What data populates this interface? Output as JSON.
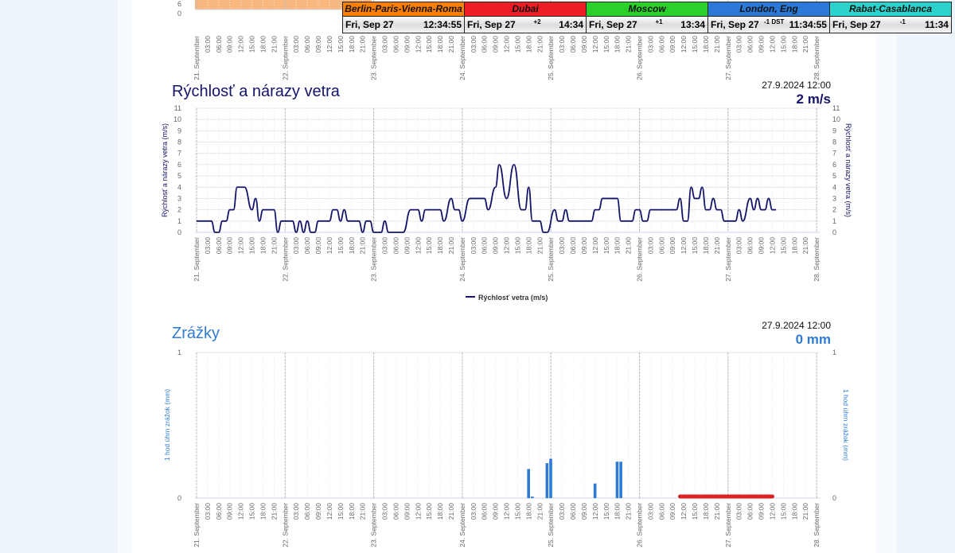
{
  "colors": {
    "wind_line": "#14146b",
    "wind_title": "#14146b",
    "precip": "#2f7bd4",
    "forecast": "#dd2222",
    "top_area": "#f9b880"
  },
  "top_chart": {
    "y_ticks": [
      "6",
      "0"
    ]
  },
  "days": [
    "21. September",
    "22. September",
    "23. September",
    "24. September",
    "25. September",
    "26. September",
    "27. September",
    "28. September"
  ],
  "hours": [
    "03:00",
    "06:00",
    "09:00",
    "12:00",
    "15:00",
    "18:00",
    "21:00"
  ],
  "clocks": [
    {
      "city": "Berlin-Paris-Vienna-Roma",
      "date": "Fri, Sep 27",
      "offset": "",
      "time": "12:34:55",
      "color": "#ff8000"
    },
    {
      "city": "Dubai",
      "date": "Fri, Sep 27",
      "offset": "+2",
      "time": "14:34",
      "color": "#ee1c24"
    },
    {
      "city": "Moscow",
      "date": "Fri, Sep 27",
      "offset": "+1",
      "time": "13:34",
      "color": "#2bd12b"
    },
    {
      "city": "London, Eng",
      "date": "Fri, Sep 27",
      "offset": "-1 DST",
      "time": "11:34:55",
      "color": "#2b78d6"
    },
    {
      "city": "Rabat-Casablanca",
      "date": "Fri, Sep 27",
      "offset": "-1",
      "time": "11:34",
      "color": "#2ad4cc"
    }
  ],
  "wind": {
    "title": "Rýchlosť a nárazy vetra",
    "stamp_date": "27.9.2024 12:00",
    "stamp_value": "2 m/s",
    "y_label": "Rýchlosť a nárazy vetra (m/s)",
    "legend": "Rýchlosť vetra (m/s)"
  },
  "precip": {
    "title": "Zrážky",
    "stamp_date": "27.9.2024 12:00",
    "stamp_value": "0 mm",
    "y_label": "1 hod úhrn zrážok (mm)"
  },
  "chart_data": [
    {
      "type": "line",
      "title": "Rýchlosť a nárazy vetra",
      "ylabel": "Rýchlosť a nárazy vetra (m/s)",
      "ylim": [
        0,
        11
      ],
      "x_unit": "hours since 21. September 00:00",
      "xlim": [
        0,
        168
      ],
      "series": [
        {
          "name": "Rýchlosť vetra (m/s)",
          "points": [
            [
              0,
              1
            ],
            [
              4,
              1
            ],
            [
              5,
              0
            ],
            [
              6,
              0
            ],
            [
              7,
              1
            ],
            [
              8,
              1
            ],
            [
              9,
              2
            ],
            [
              10,
              2
            ],
            [
              11,
              4
            ],
            [
              13,
              4
            ],
            [
              15,
              2
            ],
            [
              16,
              3
            ],
            [
              17,
              1
            ],
            [
              18,
              2
            ],
            [
              21,
              2
            ],
            [
              22,
              0
            ],
            [
              23,
              1
            ],
            [
              26,
              1
            ],
            [
              27,
              0
            ],
            [
              28,
              1
            ],
            [
              29,
              0
            ],
            [
              30,
              1
            ],
            [
              31,
              0
            ],
            [
              32,
              0
            ],
            [
              33,
              1
            ],
            [
              36,
              1
            ],
            [
              37,
              2
            ],
            [
              38,
              2
            ],
            [
              39,
              1
            ],
            [
              40,
              2
            ],
            [
              41,
              1
            ],
            [
              44,
              1
            ],
            [
              45,
              0
            ],
            [
              46,
              1
            ],
            [
              47,
              1
            ],
            [
              48,
              0
            ],
            [
              50,
              0
            ],
            [
              51,
              1
            ],
            [
              52,
              0
            ],
            [
              56,
              0
            ],
            [
              58,
              2
            ],
            [
              60,
              2
            ],
            [
              61,
              1
            ],
            [
              62,
              2
            ],
            [
              66,
              2
            ],
            [
              67,
              1
            ],
            [
              69,
              3
            ],
            [
              70,
              2
            ],
            [
              71,
              2
            ],
            [
              72,
              1
            ],
            [
              74,
              3
            ],
            [
              78,
              3
            ],
            [
              79,
              2
            ],
            [
              81,
              4
            ],
            [
              82,
              6
            ],
            [
              84,
              3
            ],
            [
              86,
              6
            ],
            [
              88,
              2
            ],
            [
              89,
              2
            ],
            [
              90,
              4
            ],
            [
              91,
              1
            ],
            [
              93,
              1
            ],
            [
              94,
              0
            ],
            [
              95,
              0
            ],
            [
              97,
              2
            ],
            [
              98,
              1
            ],
            [
              99,
              1
            ],
            [
              100,
              2
            ],
            [
              101,
              1
            ],
            [
              107,
              1
            ],
            [
              108,
              2
            ],
            [
              109,
              2
            ],
            [
              110,
              3
            ],
            [
              114,
              3
            ],
            [
              115,
              1
            ],
            [
              118,
              1
            ],
            [
              119,
              2
            ],
            [
              120,
              2
            ],
            [
              121,
              1
            ],
            [
              122,
              1
            ],
            [
              123,
              2
            ],
            [
              130,
              2
            ],
            [
              131,
              3
            ],
            [
              132,
              1
            ],
            [
              133,
              1
            ],
            [
              134,
              4
            ],
            [
              135,
              3
            ],
            [
              136,
              3
            ],
            [
              137,
              4
            ],
            [
              138,
              2
            ],
            [
              139,
              2
            ],
            [
              140,
              3
            ],
            [
              141,
              2
            ],
            [
              142,
              2
            ],
            [
              143,
              1
            ],
            [
              146,
              1
            ],
            [
              147,
              2
            ],
            [
              148,
              1
            ],
            [
              150,
              3
            ],
            [
              151,
              2
            ],
            [
              152,
              3
            ],
            [
              153,
              2
            ],
            [
              154,
              2
            ],
            [
              155,
              3
            ],
            [
              156,
              2
            ],
            [
              157,
              2
            ]
          ]
        }
      ]
    },
    {
      "type": "bar",
      "title": "Zrážky",
      "ylabel": "1 hod úhrn zrážok (mm)",
      "ylim": [
        0,
        1
      ],
      "x_unit": "hours since 21. September 00:00",
      "xlim": [
        0,
        168
      ],
      "series": [
        {
          "name": "1 hod úhrn zrážok (mm)",
          "points": [
            [
              90,
              0.2
            ],
            [
              91,
              0.01
            ],
            [
              95,
              0.24
            ],
            [
              96,
              0.27
            ],
            [
              108,
              0.1
            ],
            [
              114,
              0.25
            ],
            [
              115,
              0.25
            ]
          ]
        },
        {
          "name": "forecast",
          "range": [
            131,
            156
          ],
          "value": 0
        }
      ]
    }
  ]
}
